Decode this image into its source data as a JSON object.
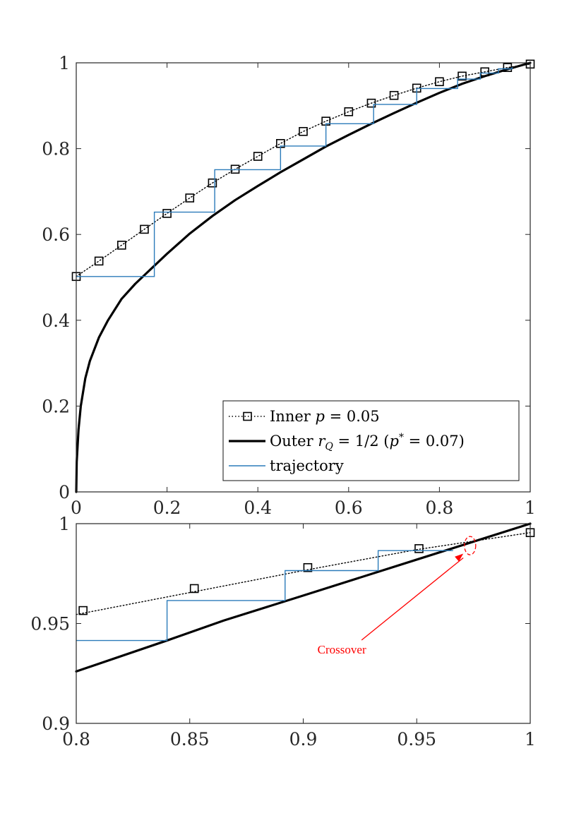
{
  "chart_data": [
    {
      "type": "line",
      "xlim": [
        0,
        1
      ],
      "ylim": [
        0,
        1
      ],
      "x_ticks": [
        "0",
        "0.2",
        "0.4",
        "0.6",
        "0.8",
        "1"
      ],
      "y_ticks": [
        "0",
        "0.2",
        "0.4",
        "0.6",
        "0.8",
        "1"
      ],
      "x_tick_values": [
        0,
        0.2,
        0.4,
        0.6,
        0.8,
        1
      ],
      "y_tick_values": [
        0,
        0.2,
        0.4,
        0.6,
        0.8,
        1
      ],
      "grid": false,
      "legend_position": "bottom-right",
      "series": [
        {
          "name": "Inner p = 0.05",
          "style": "dotted-square-markers",
          "color": "#000000",
          "x": [
            0,
            0.05,
            0.1,
            0.15,
            0.2,
            0.25,
            0.3,
            0.35,
            0.4,
            0.45,
            0.5,
            0.55,
            0.6,
            0.65,
            0.7,
            0.75,
            0.8,
            0.85,
            0.9,
            0.95,
            1
          ],
          "y": [
            0.502,
            0.538,
            0.575,
            0.612,
            0.649,
            0.685,
            0.72,
            0.752,
            0.782,
            0.812,
            0.84,
            0.864,
            0.886,
            0.906,
            0.924,
            0.941,
            0.956,
            0.969,
            0.979,
            0.989,
            0.997
          ]
        },
        {
          "name": "Outer r_Q = 1/2 (p* = 0.07)",
          "style": "solid-thick",
          "color": "#000000",
          "x": [
            0,
            0.001,
            0.005,
            0.01,
            0.02,
            0.03,
            0.05,
            0.07,
            0.1,
            0.13,
            0.16,
            0.2,
            0.25,
            0.3,
            0.35,
            0.4,
            0.45,
            0.5,
            0.55,
            0.6,
            0.65,
            0.7,
            0.75,
            0.8,
            0.85,
            0.9,
            0.95,
            1
          ],
          "y": [
            0,
            0.07,
            0.145,
            0.2,
            0.265,
            0.305,
            0.36,
            0.4,
            0.45,
            0.485,
            0.515,
            0.555,
            0.602,
            0.643,
            0.68,
            0.713,
            0.745,
            0.775,
            0.805,
            0.832,
            0.858,
            0.883,
            0.907,
            0.93,
            0.951,
            0.969,
            0.985,
            1.0
          ]
        },
        {
          "name": "trajectory",
          "style": "step",
          "color": "#2b7bba",
          "x": [
            0,
            0.172,
            0.172,
            0.305,
            0.305,
            0.45,
            0.45,
            0.55,
            0.55,
            0.655,
            0.655,
            0.75,
            0.75,
            0.84,
            0.84,
            0.89,
            0.89,
            0.93,
            0.93,
            0.96,
            0.96
          ],
          "y": [
            0.502,
            0.502,
            0.652,
            0.652,
            0.751,
            0.751,
            0.806,
            0.806,
            0.858,
            0.858,
            0.903,
            0.903,
            0.94,
            0.94,
            0.962,
            0.962,
            0.976,
            0.976,
            0.986,
            0.986,
            0.99
          ]
        }
      ],
      "legend": [
        {
          "prefix": "Inner ",
          "math": "p",
          "rest": " = 0.05"
        },
        {
          "prefix": "Outer ",
          "math": "r",
          "sub": "Q",
          "rest": " = 1/2 (",
          "math2": "p",
          "sup": "*",
          "rest2": " = 0.07)"
        },
        {
          "prefix": "trajectory"
        }
      ]
    },
    {
      "type": "line",
      "xlim": [
        0.8,
        1
      ],
      "ylim": [
        0.9,
        1
      ],
      "x_ticks": [
        "0.8",
        "0.85",
        "0.9",
        "0.95",
        "1"
      ],
      "y_ticks": [
        "0.9",
        "0.95",
        "1"
      ],
      "x_tick_values": [
        0.8,
        0.85,
        0.9,
        0.95,
        1
      ],
      "y_tick_values": [
        0.9,
        0.95,
        1
      ],
      "grid": false,
      "series": [
        {
          "name": "Inner p = 0.05",
          "style": "dotted",
          "color": "#000000",
          "x": [
            0.8,
            0.85,
            0.9,
            0.95,
            1
          ],
          "y": [
            0.9545,
            0.9655,
            0.9765,
            0.987,
            0.9955
          ]
        },
        {
          "name": "Inner p = 0.05 markers",
          "style": "square-markers",
          "color": "#000000",
          "x": [
            0.803,
            0.852,
            0.902,
            0.951,
            1.0
          ],
          "y": [
            0.9565,
            0.9675,
            0.978,
            0.9875,
            0.9955
          ]
        },
        {
          "name": "Outer r_Q = 1/2 (p* = 0.07)",
          "style": "solid-thick",
          "color": "#000000",
          "x": [
            0.8,
            0.84,
            0.865,
            0.9,
            0.95,
            1.0
          ],
          "y": [
            0.926,
            0.9415,
            0.9515,
            0.964,
            0.982,
            1.0
          ]
        },
        {
          "name": "trajectory",
          "style": "step",
          "color": "#2b7bba",
          "x": [
            0.8,
            0.84,
            0.84,
            0.892,
            0.892,
            0.933,
            0.933,
            0.966
          ],
          "y": [
            0.9415,
            0.9415,
            0.9615,
            0.9615,
            0.9765,
            0.9765,
            0.9865,
            0.9865
          ]
        }
      ],
      "annotation": {
        "text": "Crossover",
        "color": "#ff0000",
        "text_at": [
          0.917,
          0.935
        ],
        "arrow_head": [
          0.9705,
          0.985
        ],
        "circle_center": [
          0.9735,
          0.989
        ]
      }
    }
  ]
}
